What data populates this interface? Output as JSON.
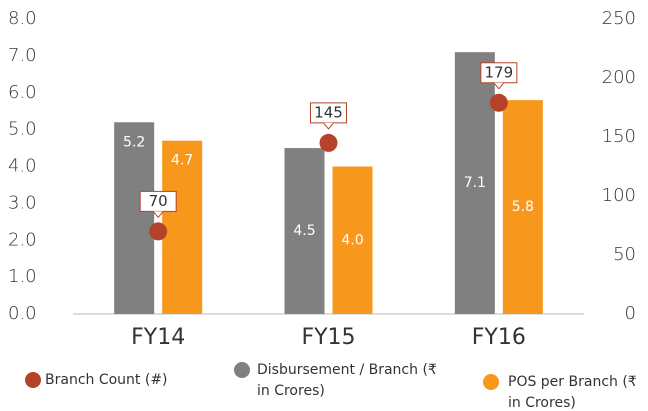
{
  "chart_data": {
    "type": "bar",
    "categories": [
      "FY14",
      "FY15",
      "FY16"
    ],
    "ylim": [
      0,
      8
    ],
    "yticks": [
      {
        "value": 0,
        "label": "0.0"
      },
      {
        "value": 1,
        "label": "1.0"
      },
      {
        "value": 2,
        "label": "2.0"
      },
      {
        "value": 3,
        "label": "3.0"
      },
      {
        "value": 4,
        "label": "4.0"
      },
      {
        "value": 5,
        "label": "5.0"
      },
      {
        "value": 6,
        "label": "6.0"
      },
      {
        "value": 7,
        "label": "7.0"
      },
      {
        "value": 8,
        "label": "8.0"
      }
    ],
    "y2lim": [
      0,
      250
    ],
    "y2ticks": [
      0,
      50,
      100,
      150,
      200,
      250
    ],
    "series": [
      {
        "name": "Branch Count (#)",
        "color": "#b5432b",
        "type": "scatter",
        "axis": "y2",
        "values": [
          70,
          145,
          179
        ]
      },
      {
        "name": "Disbursement / Branch (₹ in Crores)",
        "color": "#808080",
        "values": [
          5.2,
          4.5,
          7.1
        ]
      },
      {
        "name": "POS per Branch (₹ in Crores)",
        "color": "#f7981d",
        "values": [
          4.7,
          4.0,
          5.8
        ],
        "value_labels": [
          "4.7",
          "4.0",
          "5.8"
        ]
      }
    ]
  }
}
